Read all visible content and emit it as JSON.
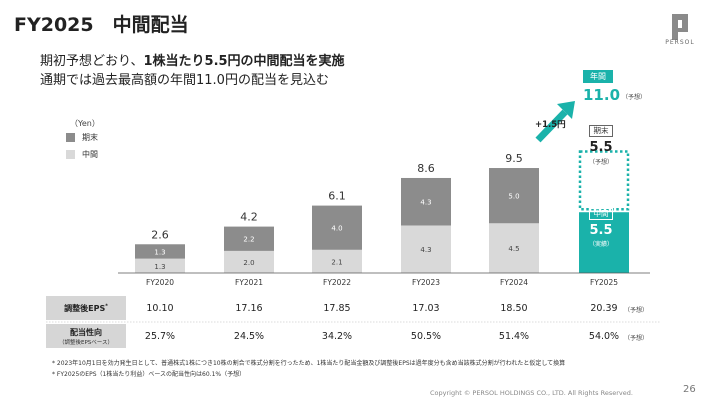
{
  "header": {
    "title": "FY2025　中間配当",
    "subtitle_line1_prefix": "期初予想どおり、",
    "subtitle_line1_bold": "1株当たり5.5円の中間配当を実施",
    "subtitle_line2": "通期では過去最高額の年間11.0円の配当を見込む"
  },
  "logo": {
    "text": "PERSOL"
  },
  "chart_data": {
    "type": "bar",
    "stacked": true,
    "unit_label": "（Yen）",
    "categories": [
      "FY2020",
      "FY2021",
      "FY2022",
      "FY2023",
      "FY2024",
      "FY2025"
    ],
    "series": [
      {
        "name": "中間",
        "values": [
          1.3,
          2.0,
          2.1,
          4.3,
          4.5,
          5.5
        ],
        "color": "#d9d9d9"
      },
      {
        "name": "期末",
        "values": [
          1.3,
          2.2,
          4.0,
          4.3,
          5.0,
          5.5
        ],
        "color": "#8c8c8c"
      }
    ],
    "totals": [
      2.6,
      4.2,
      6.1,
      8.6,
      9.5,
      11.0
    ],
    "interim_labels": [
      "1.3",
      "2.0",
      "2.1",
      "4.3",
      "4.5"
    ],
    "final_labels": [
      "1.3",
      "2.2",
      "4.0",
      "4.3",
      "5.0"
    ],
    "total_labels": [
      "2.6",
      "4.2",
      "6.1",
      "8.6",
      "9.5"
    ],
    "highlight_color": "#1ab2aa",
    "ylim": [
      0,
      11.0
    ]
  },
  "fy2025_callout": {
    "annual_badge": "年間",
    "annual_value": "11.0",
    "annual_note": "（予想）",
    "final_badge": "期末",
    "final_value": "5.5",
    "final_note": "（予想）",
    "interim_badge": "中間",
    "interim_value": "5.5",
    "interim_note": "（実績）",
    "increase_label": "+1.5円"
  },
  "table": {
    "eps": {
      "label": "調整後EPS",
      "label_mark": "*",
      "values": [
        "10.10",
        "17.16",
        "17.85",
        "17.03",
        "18.50",
        "20.39"
      ],
      "note": "（予想）"
    },
    "payout": {
      "label": "配当性向",
      "label_sub": "（調整後EPSベース）",
      "values": [
        "25.7%",
        "24.5%",
        "34.2%",
        "50.5%",
        "51.4%",
        "54.0%"
      ],
      "note": "（予想）"
    }
  },
  "footnotes": [
    "* 2023年10月1日を効力発生日として、普通株式1株につき10株の割合で株式分割を行ったため、1株当たり配当金額及び調整後EPSは過年度分も含め当該株式分割が行われたと仮定して換算",
    "* FY2025のEPS（1株当たり利益）ベースの配当性向は60.1%（予想）"
  ],
  "footer": {
    "copyright": "Copyright © PERSOL HOLDINGS CO., LTD. All Rights Reserved.",
    "page": "26"
  }
}
